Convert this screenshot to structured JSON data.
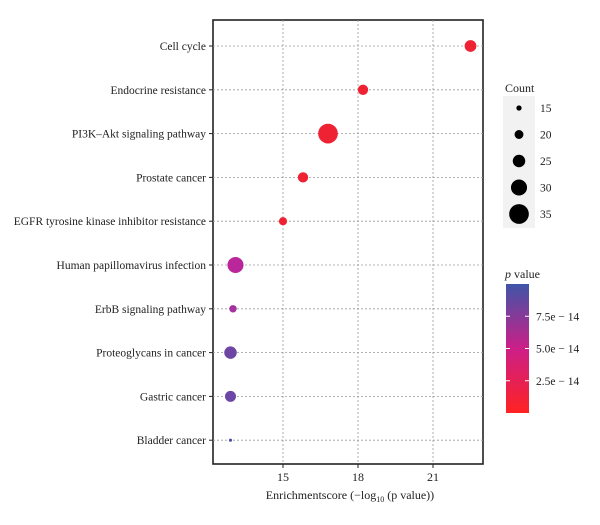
{
  "chart_data": {
    "type": "scatter",
    "title": "",
    "xlabel": {
      "main": "Enrichmentscore (−log",
      "sub": "10",
      "tail": " (p value))"
    },
    "ylabel": "",
    "xlim": [
      12.2,
      23.0
    ],
    "xticks": [
      15,
      18,
      21
    ],
    "grid": true,
    "categories": [
      "Cell cycle",
      "Endocrine resistance",
      "PI3K–Akt signaling pathway",
      "Prostate cancer",
      "EGFR tyrosine kinase inhibitor resistance",
      "Human papillomavirus infection",
      "ErbB signaling pathway",
      "Proteoglycans in cancer",
      "Gastric cancer",
      "Bladder cancer"
    ],
    "points": [
      {
        "term": "Cell cycle",
        "x": 22.5,
        "count": 24,
        "color": "#ee2233"
      },
      {
        "term": "Endocrine resistance",
        "x": 18.2,
        "count": 22,
        "color": "#ee2233"
      },
      {
        "term": "PI3K–Akt signaling pathway",
        "x": 16.8,
        "count": 35,
        "color": "#ee2233"
      },
      {
        "term": "Prostate cancer",
        "x": 15.8,
        "count": 22,
        "color": "#ee2233"
      },
      {
        "term": "EGFR tyrosine kinase inhibitor resistance",
        "x": 15.0,
        "count": 19,
        "color": "#ee2233"
      },
      {
        "term": "Human papillomavirus infection",
        "x": 13.1,
        "count": 30,
        "color": "#b9279a"
      },
      {
        "term": "ErbB signaling pathway",
        "x": 13.0,
        "count": 18,
        "color": "#a3329d"
      },
      {
        "term": "Proteoglycans in cancer",
        "x": 12.9,
        "count": 25,
        "color": "#6f45a4"
      },
      {
        "term": "Gastric cancer",
        "x": 12.9,
        "count": 23,
        "color": "#6c47a6"
      },
      {
        "term": "Bladder cancer",
        "x": 12.9,
        "count": 12,
        "color": "#4a51a8"
      }
    ],
    "size_legend": {
      "title": "Count",
      "entries": [
        "15",
        "20",
        "25",
        "30",
        "35"
      ],
      "values": [
        15,
        20,
        25,
        30,
        35
      ]
    },
    "color_legend": {
      "title_italic": "p",
      "title_rest": " value",
      "labels": [
        "7.5e − 14",
        "5.0e − 14",
        "2.5e − 14"
      ],
      "values": [
        7.5e-14,
        5e-14,
        2.5e-14
      ],
      "low_color": "#ff2222",
      "mid_color": "#cc1f88",
      "high_color": "#3f55a8"
    }
  }
}
